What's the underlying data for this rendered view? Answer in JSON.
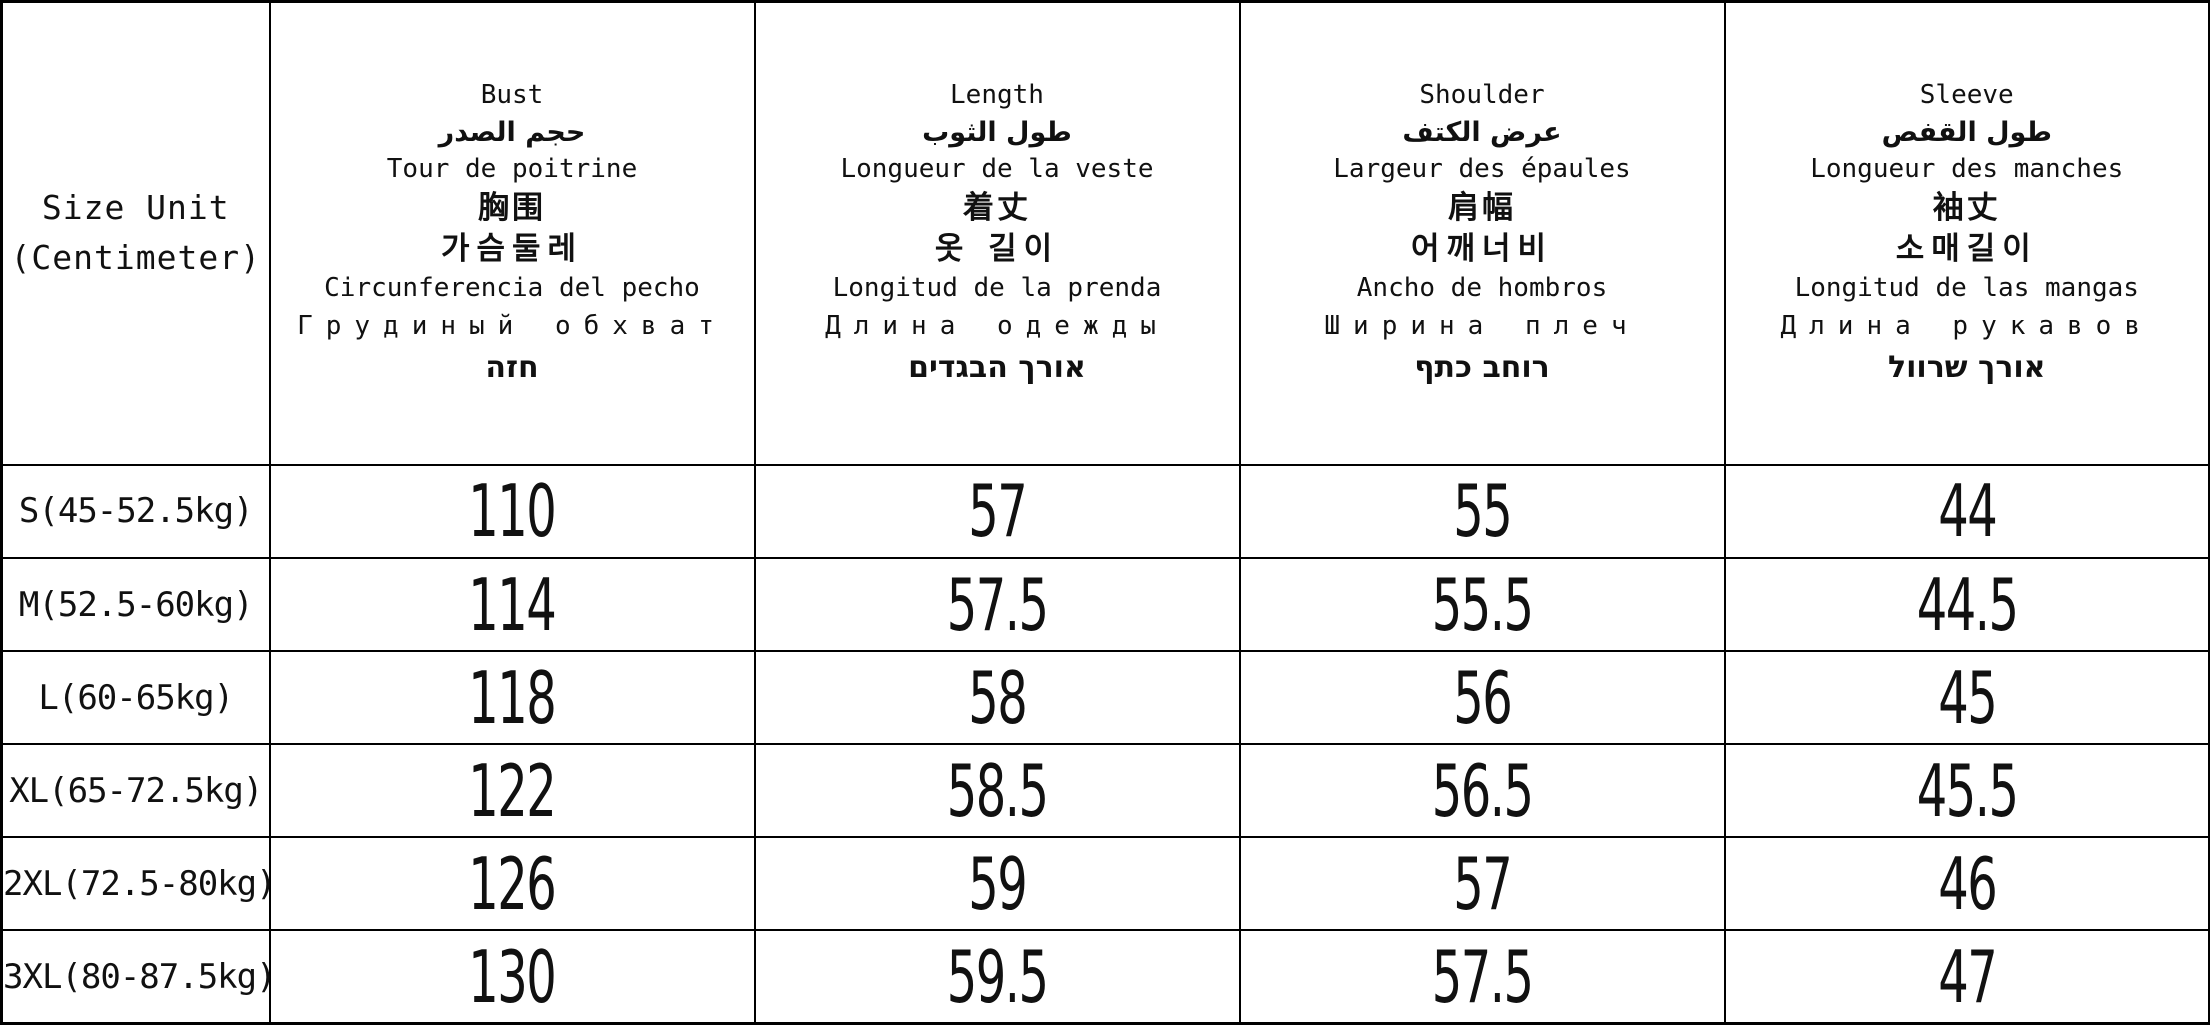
{
  "table": {
    "corner_header": {
      "line1": "Size Unit",
      "line2": "(Centimeter)"
    },
    "columns": [
      {
        "key": "bust",
        "labels": {
          "en": "Bust",
          "ar": "حجم الصدر",
          "fr": "Tour de poitrine",
          "zh": "胸围",
          "ko": "가슴둘레",
          "es": "Circunferencia del pecho",
          "ru": "Грудиный обхват",
          "he": "חזה"
        }
      },
      {
        "key": "length",
        "labels": {
          "en": "Length",
          "ar": "طول الثوب",
          "fr": "Longueur de la veste",
          "zh": "着丈",
          "ko": "옷 길이",
          "es": "Longitud de la prenda",
          "ru": "Длина одежды",
          "he": "אורך הבגדים"
        }
      },
      {
        "key": "shoulder",
        "labels": {
          "en": "Shoulder",
          "ar": "عرض الكتف",
          "fr": "Largeur des épaules",
          "zh": "肩幅",
          "ko": "어깨너비",
          "es": "Ancho de hombros",
          "ru": "Ширина плеч",
          "he": "רוחב כתף"
        }
      },
      {
        "key": "sleeve",
        "labels": {
          "en": "Sleeve",
          "ar": "طول القفص",
          "fr": "Longueur des manches",
          "zh": "袖丈",
          "ko": "소매길이",
          "es": "Longitud de las mangas",
          "ru": "Длина рукавов",
          "he": "אורך שרוול"
        }
      }
    ],
    "rows": [
      {
        "size": "S(45-52.5kg)",
        "values": [
          "110",
          "57",
          "55",
          "44"
        ]
      },
      {
        "size": "M(52.5-60kg)",
        "values": [
          "114",
          "57.5",
          "55.5",
          "44.5"
        ]
      },
      {
        "size": "L(60-65kg)",
        "values": [
          "118",
          "58",
          "56",
          "45"
        ]
      },
      {
        "size": "XL(65-72.5kg)",
        "values": [
          "122",
          "58.5",
          "56.5",
          "45.5"
        ]
      },
      {
        "size": "2XL(72.5-80kg)",
        "values": [
          "126",
          "59",
          "57",
          "46"
        ]
      },
      {
        "size": "3XL(80-87.5kg)",
        "values": [
          "130",
          "59.5",
          "57.5",
          "47"
        ]
      }
    ]
  },
  "colors": {
    "text": "#111111",
    "border": "#000000",
    "background": "#ffffff"
  }
}
